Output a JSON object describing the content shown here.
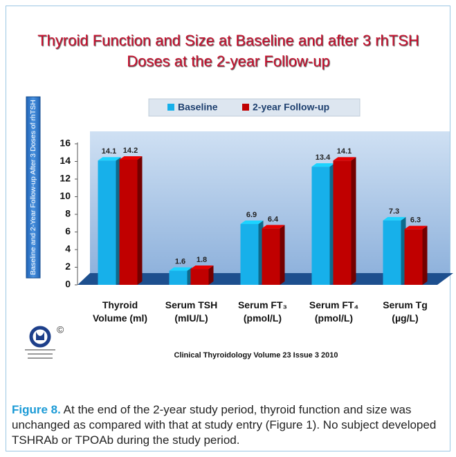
{
  "chart_data": {
    "type": "bar",
    "title": "Thyroid Function and Size at Baseline and after 3 rhTSH Doses at the 2-year Follow-up",
    "y_label": "Baseline and 2-Year Follow-up After 3 Doses of rhTSH",
    "categories": [
      "Thyroid Volume (ml)",
      "Serum TSH (mIU/L)",
      "Serum FT₃ (pmol/L)",
      "Serum FT₄ (pmol/L)",
      "Serum Tg (µg/L)"
    ],
    "series": [
      {
        "name": "Baseline",
        "color": "#17b0ea",
        "values": [
          14.1,
          1.6,
          6.9,
          13.4,
          7.3
        ]
      },
      {
        "name": "2-year Follow-up",
        "color": "#c00000",
        "values": [
          14.2,
          1.8,
          6.4,
          14.1,
          6.3
        ]
      }
    ],
    "ylim": [
      0,
      16
    ],
    "yticks": [
      0,
      2,
      4,
      6,
      8,
      10,
      12,
      14,
      16
    ],
    "source": "Clinical Thyroidology Volume 23 Issue 3 2010",
    "logo_mark": "©"
  },
  "caption": {
    "label": "Figure 8.",
    "text": "At the end of the 2-year study period, thyroid function and size was unchanged as compared with that at study entry (Figure 1). No subject developed TSHRAb or TPOAb during the study period."
  }
}
